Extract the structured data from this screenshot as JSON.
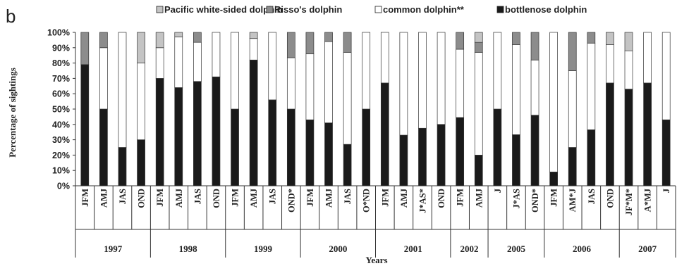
{
  "panel_label": "b",
  "chart_data": {
    "type": "bar",
    "stacked": true,
    "percent": true,
    "title": "",
    "xlabel": "Years",
    "ylabel": "Percentage of sightings",
    "ylim": [
      0,
      100
    ],
    "yticks": [
      "0%",
      "10%",
      "20%",
      "30%",
      "40%",
      "50%",
      "60%",
      "70%",
      "80%",
      "90%",
      "100%"
    ],
    "legend_position": "top",
    "categories": [
      "JFM",
      "AMJ",
      "JAS",
      "OND",
      "JFM",
      "AMJ",
      "JAS",
      "OND",
      "JFM",
      "AMJ",
      "JAS",
      "OND*",
      "JFM",
      "AMJ",
      "JAS",
      "O*ND",
      "JFM",
      "AMJ",
      "J*AS*",
      "OND",
      "JFM",
      "AMJ",
      "J",
      "J*AS",
      "OND*",
      "JFM",
      "AM*J",
      "JAS",
      "OND",
      "JF*M*",
      "A*MJ",
      "J"
    ],
    "groups": [
      {
        "label": "1997",
        "count": 4
      },
      {
        "label": "1998",
        "count": 4
      },
      {
        "label": "1999",
        "count": 4
      },
      {
        "label": "2000",
        "count": 4
      },
      {
        "label": "2001",
        "count": 4
      },
      {
        "label": "2002",
        "count": 2
      },
      {
        "label": "2005",
        "count": 3
      },
      {
        "label": "2006",
        "count": 4
      },
      {
        "label": "2007",
        "count": 3
      }
    ],
    "series": [
      {
        "name": "bottlenose dolphin",
        "color": "#1a1a1a",
        "values": [
          79,
          50,
          25,
          30,
          70,
          64,
          68,
          71,
          50,
          82,
          56,
          50,
          43,
          41,
          27,
          50,
          67,
          33,
          37.5,
          40,
          44.5,
          20,
          50,
          33.3,
          46,
          9,
          25,
          36.5,
          67,
          63,
          67,
          43
        ]
      },
      {
        "name": "common dolphin**",
        "color": "#ffffff",
        "values": [
          0,
          40,
          75,
          50,
          20,
          33,
          25.5,
          29,
          50,
          14,
          44,
          33.5,
          43,
          53,
          60,
          50,
          33,
          67,
          62.5,
          60,
          44.5,
          67,
          50,
          58.7,
          36,
          91,
          50,
          56.5,
          25,
          25,
          33,
          57
        ]
      },
      {
        "name": "Risso's dolphin",
        "color": "#8c8c8c",
        "values": [
          21,
          10,
          0,
          0,
          0,
          0,
          6.5,
          0,
          0,
          0,
          0,
          16.5,
          14,
          6,
          13,
          0,
          0,
          0,
          0,
          0,
          11,
          6.5,
          0,
          8,
          18,
          0,
          25,
          7,
          0,
          0,
          0,
          0
        ]
      },
      {
        "name": "Pacific white-sided dolphin",
        "color": "#c4c4c4",
        "values": [
          0,
          0,
          0,
          20,
          10,
          3,
          0,
          0,
          0,
          4,
          0,
          0,
          0,
          0,
          0,
          0,
          0,
          0,
          0,
          0,
          0,
          6.5,
          0,
          0,
          0,
          0,
          0,
          0,
          8,
          12,
          0,
          0
        ]
      }
    ],
    "legend": [
      {
        "name": "Pacific white-sided dolphin",
        "color": "#c4c4c4"
      },
      {
        "name": "Risso's dolphin",
        "color": "#8c8c8c"
      },
      {
        "name": "common dolphin**",
        "color": "#ffffff"
      },
      {
        "name": "bottlenose dolphin",
        "color": "#1a1a1a"
      }
    ]
  }
}
